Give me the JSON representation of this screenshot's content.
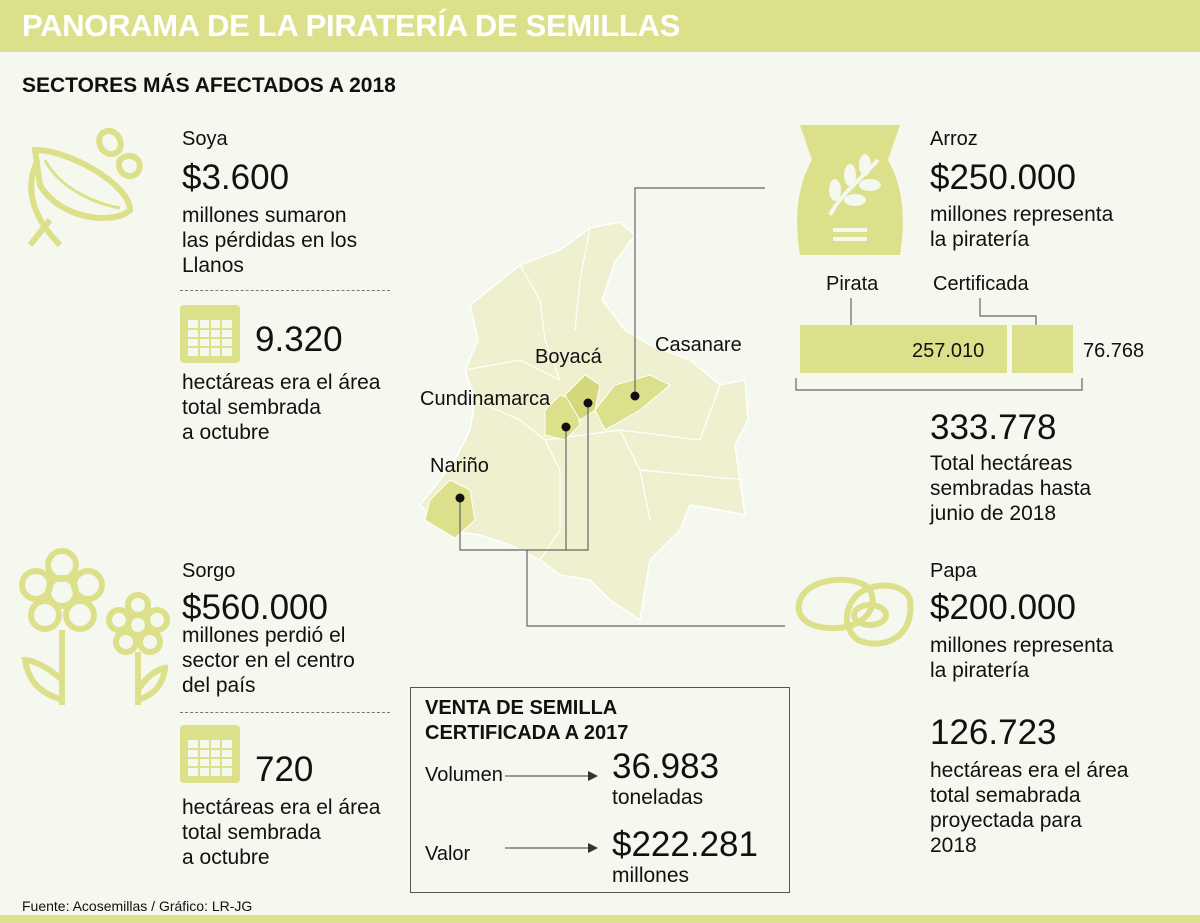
{
  "header": {
    "title": "PANORAMA DE LA PIRATERÍA DE SEMILLAS",
    "subtitle": "SECTORES MÁS AFECTADOS A 2018"
  },
  "colors": {
    "accent": "#dde08a",
    "background": "#f5f8ee",
    "map": "#eef0cf"
  },
  "soya": {
    "name": "Soya",
    "amount": "$3.600",
    "desc": [
      "millones sumaron",
      "las pérdidas en los",
      "Llanos"
    ],
    "area": "9.320",
    "area_desc": [
      "hectáreas era el área",
      "total sembrada",
      "a octubre"
    ],
    "icon": "soybean-icon"
  },
  "sorgo": {
    "name": "Sorgo",
    "amount": "$560.000",
    "desc": [
      "millones perdió el",
      "sector en el centro",
      "del país"
    ],
    "area": "720",
    "area_desc": [
      "hectáreas era el área",
      "total sembrada",
      "a octubre"
    ],
    "icon": "flower-icon"
  },
  "arroz": {
    "name": "Arroz",
    "amount": "$250.000",
    "desc": [
      "millones representa",
      "la piratería"
    ],
    "bar": {
      "pirata_label": "Pirata",
      "certificada_label": "Certificada",
      "pirata_value": "257.010",
      "certificada_value": "76.768",
      "pirata_num": 257010,
      "certificada_num": 76768
    },
    "total": "333.778",
    "total_desc": [
      "Total hectáreas",
      "sembradas hasta",
      "junio de 2018"
    ],
    "icon": "rice-bag-icon"
  },
  "papa": {
    "name": "Papa",
    "amount": "$200.000",
    "desc": [
      "millones representa",
      "la piratería"
    ],
    "area": "126.723",
    "area_desc": [
      "hectáreas era el área",
      "total semabrada",
      "proyectada para",
      "2018"
    ],
    "icon": "potato-icon"
  },
  "map": {
    "labels": [
      "Boyacá",
      "Casanare",
      "Cundinamarca",
      "Nariño"
    ]
  },
  "venta": {
    "title": [
      "VENTA DE SEMILLA",
      "CERTIFICADA  A 2017"
    ],
    "volumen_label": "Volumen",
    "volumen_value": "36.983",
    "volumen_unit": "toneladas",
    "valor_label": "Valor",
    "valor_value": "$222.281",
    "valor_unit": "millones"
  },
  "footer": "Fuente: Acosemillas / Gráfico: LR-JG"
}
